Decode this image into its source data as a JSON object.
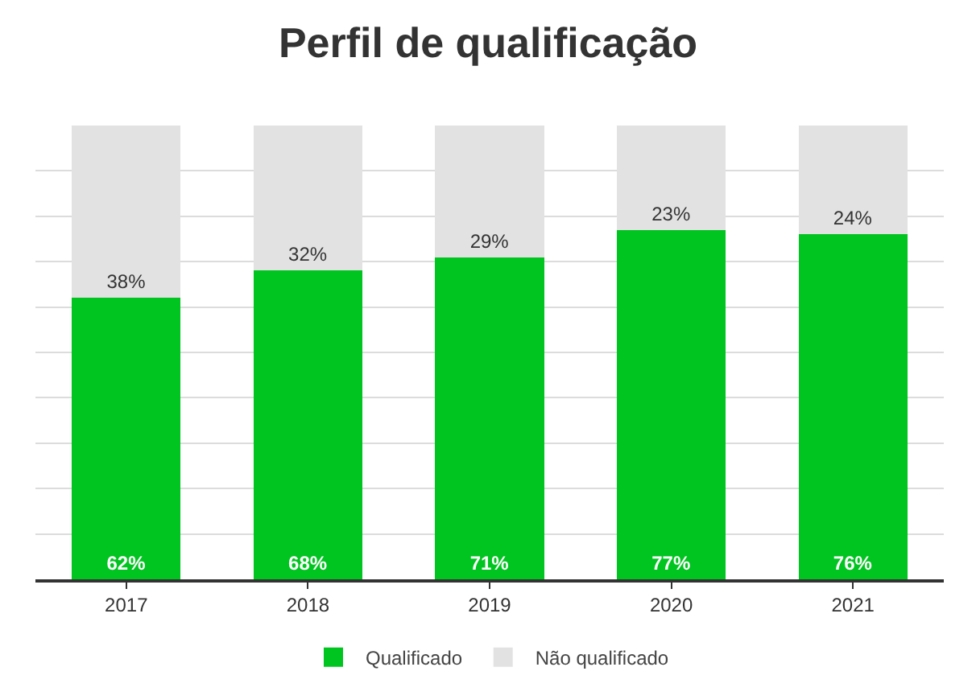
{
  "chart_data": {
    "type": "bar",
    "title": "Perfil de qualificação",
    "stacked": true,
    "categories": [
      "2017",
      "2018",
      "2019",
      "2020",
      "2021"
    ],
    "series": [
      {
        "name": "Qualificado",
        "color": "#00c41f",
        "values": [
          62,
          68,
          71,
          77,
          76
        ],
        "value_labels": [
          "62%",
          "68%",
          "71%",
          "77%",
          "76%"
        ]
      },
      {
        "name": "Não qualificado",
        "color": "#e2e2e2",
        "values": [
          38,
          32,
          29,
          23,
          24
        ],
        "value_labels": [
          "38%",
          "32%",
          "29%",
          "23%",
          "24%"
        ]
      }
    ],
    "ylim": [
      0,
      100
    ],
    "yticks": [
      {
        "value": 0,
        "label": null
      },
      {
        "value": 10,
        "label": null
      },
      {
        "value": 20,
        "label": null
      },
      {
        "value": 30,
        "label": null
      },
      {
        "value": 40,
        "label": null
      },
      {
        "value": 50,
        "label": null
      },
      {
        "value": 60,
        "label": null
      },
      {
        "value": 70,
        "label": null
      },
      {
        "value": 80,
        "label": null
      },
      {
        "value": 90,
        "label": null
      }
    ],
    "tick_labels": "x",
    "grid": "y",
    "legend": "bottom"
  }
}
